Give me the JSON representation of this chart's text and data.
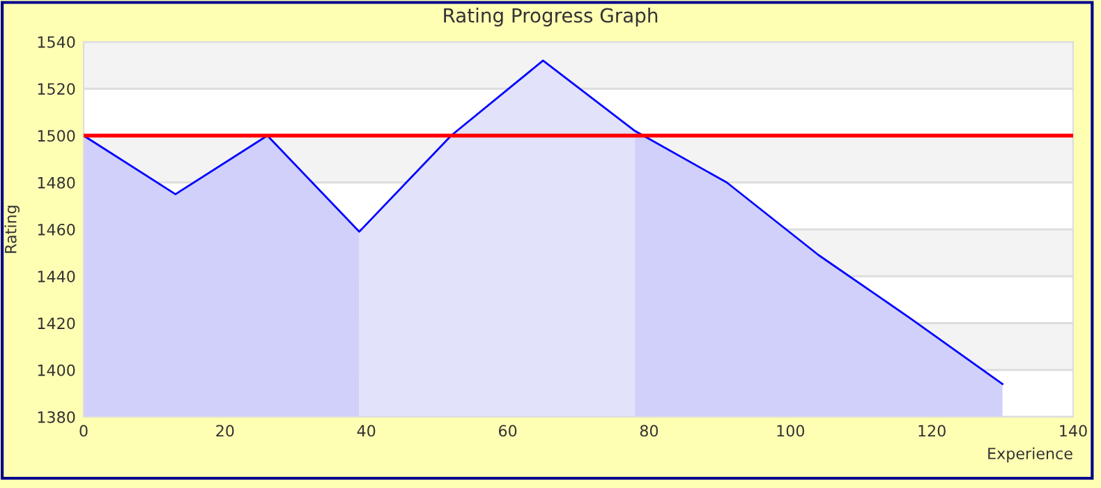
{
  "chart_data": {
    "type": "area",
    "title": "Rating Progress Graph",
    "xlabel": "Experience",
    "ylabel": "Rating",
    "series": [
      {
        "color": "#d0d0fa",
        "x": [
          0,
          13,
          26,
          39
        ],
        "values": [
          1500,
          1475,
          1500,
          1459
        ]
      },
      {
        "color": "#e2e2fa",
        "x": [
          39,
          52,
          65,
          78
        ],
        "values": [
          1459,
          1500,
          1532,
          1502
        ]
      },
      {
        "color": "#d0d0fa",
        "x": [
          78,
          91,
          104,
          117,
          130
        ],
        "values": [
          1502,
          1480,
          1449,
          1422,
          1394
        ]
      },
      {
        "type": "line",
        "color": "#0000ff",
        "x": [
          0,
          13,
          26,
          39,
          52,
          65,
          78,
          91,
          104,
          117,
          130
        ],
        "values": [
          1500,
          1475,
          1500,
          1459,
          1500,
          1532,
          1502,
          1480,
          1449,
          1422,
          1394
        ]
      }
    ],
    "ref_lines": [
      {
        "axis": "y",
        "value": 1500,
        "color": "#ff0000"
      }
    ],
    "xlim": [
      0,
      140
    ],
    "xticks": [
      0,
      20,
      40,
      60,
      80,
      100,
      120,
      140
    ],
    "ylim": [
      1380,
      1540
    ],
    "yticks": [
      1380,
      1400,
      1420,
      1440,
      1460,
      1480,
      1500,
      1520,
      1540
    ],
    "grid": "y",
    "marker": "none"
  }
}
